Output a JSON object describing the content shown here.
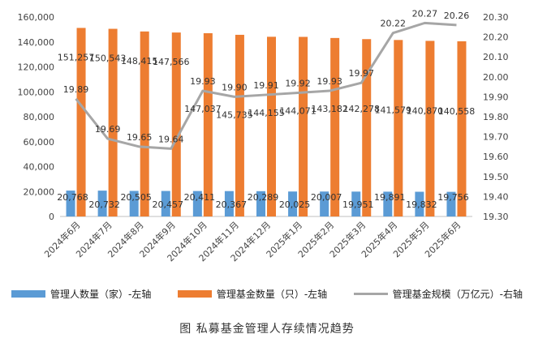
{
  "chart_data": {
    "type": "bar",
    "categories": [
      "2024年6月",
      "2024年7月",
      "2024年8月",
      "2024年9月",
      "2024年10月",
      "2024年11月",
      "2024年12月",
      "2025年1月",
      "2025年2月",
      "2025年3月",
      "2025年4月",
      "2025年5月",
      "2025年6月"
    ],
    "series": [
      {
        "name": "管理人数量（家）-左轴",
        "type": "bar",
        "axis": "left",
        "color": "#5b9bd5",
        "values": [
          20768,
          20732,
          20505,
          20457,
          20411,
          20367,
          20289,
          20025,
          20007,
          19951,
          19891,
          19832,
          19756
        ]
      },
      {
        "name": "管理基金数量（只）-左轴",
        "type": "bar",
        "axis": "left",
        "color": "#ed7d31",
        "values": [
          151257,
          150543,
          148415,
          147566,
          147037,
          145735,
          144155,
          144071,
          143182,
          142278,
          141579,
          140870,
          140558
        ]
      },
      {
        "name": "管理基金规模（万亿元）-右轴",
        "type": "line",
        "axis": "right",
        "color": "#a6a6a6",
        "values": [
          19.89,
          19.69,
          19.65,
          19.64,
          19.93,
          19.9,
          19.91,
          19.92,
          19.93,
          19.97,
          20.22,
          20.27,
          20.26
        ]
      }
    ],
    "left_axis": {
      "min": 0,
      "max": 160000,
      "step": 20000
    },
    "right_axis": {
      "min": 19.3,
      "max": 20.3,
      "step": 0.1
    },
    "grid": false,
    "legend_position": "bottom"
  },
  "caption": "图   私募基金管理人存续情况趋势"
}
